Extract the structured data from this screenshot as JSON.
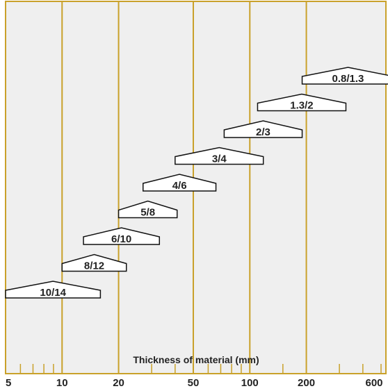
{
  "chart_data": {
    "type": "range-bar",
    "xlabel": "Thickness of material (mm)",
    "x_scale": "log",
    "xlim": [
      5,
      650
    ],
    "tick_labels": [
      "5",
      "10",
      "20",
      "50",
      "100",
      "200",
      "600"
    ],
    "major_gridlines": [
      10,
      20,
      50,
      100,
      200
    ],
    "minor_ticks": [
      6,
      7,
      8,
      9,
      30,
      40,
      60,
      70,
      80,
      90,
      150,
      300,
      400,
      500
    ],
    "bars": [
      {
        "label": "10/14",
        "x_start": 5,
        "x_end": 16
      },
      {
        "label": "8/12",
        "x_start": 10,
        "x_end": 22
      },
      {
        "label": "6/10",
        "x_start": 13,
        "x_end": 33
      },
      {
        "label": "5/8",
        "x_start": 20,
        "x_end": 41
      },
      {
        "label": "4/6",
        "x_start": 27,
        "x_end": 66
      },
      {
        "label": "3/4",
        "x_start": 40,
        "x_end": 118
      },
      {
        "label": "2/3",
        "x_start": 73,
        "x_end": 190
      },
      {
        "label": "1.3/2",
        "x_start": 110,
        "x_end": 325
      },
      {
        "label": "0.8/1.3",
        "x_start": 190,
        "x_end": 585
      }
    ],
    "colors": {
      "background": "#efefef",
      "gridline": "#c9a12a",
      "bar_fill": "#ffffff",
      "bar_stroke": "#111111",
      "text": "#222222"
    }
  }
}
